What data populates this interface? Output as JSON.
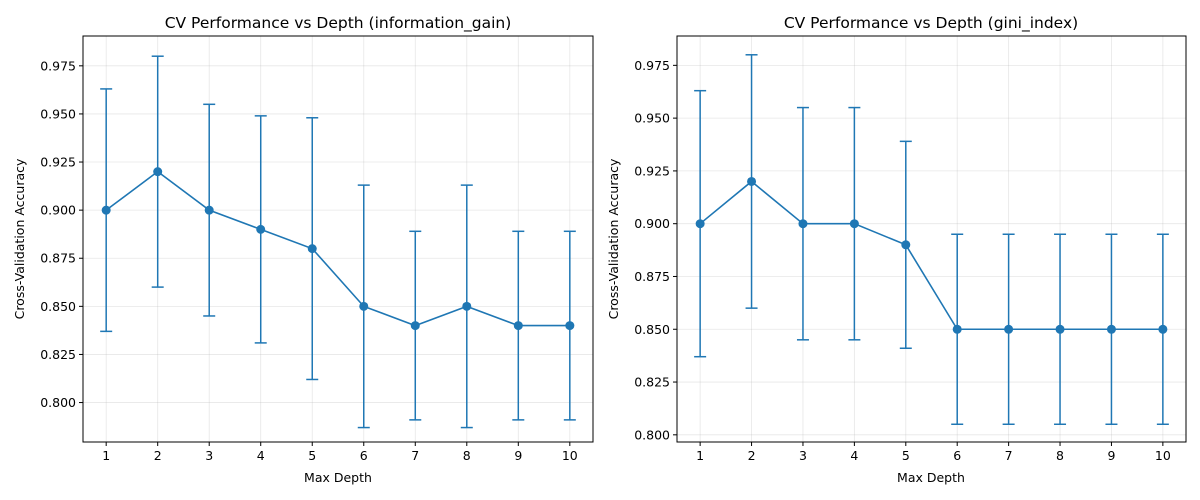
{
  "chart_data": [
    {
      "type": "line",
      "title": "CV Performance vs Depth (information_gain)",
      "xlabel": "Max Depth",
      "ylabel": "Cross-Validation Accuracy",
      "x": [
        1,
        2,
        3,
        4,
        5,
        6,
        7,
        8,
        9,
        10
      ],
      "xlim": [
        0.55,
        10.45
      ],
      "ylim": [
        0.7795,
        0.9905
      ],
      "yticks": [
        "0.800",
        "0.825",
        "0.850",
        "0.875",
        "0.900",
        "0.925",
        "0.950",
        "0.975"
      ],
      "grid": true,
      "color": "#1f77b4",
      "series": [
        {
          "values": [
            0.9,
            0.92,
            0.9,
            0.89,
            0.88,
            0.85,
            0.84,
            0.85,
            0.84,
            0.84
          ],
          "error_low": [
            0.837,
            0.86,
            0.845,
            0.831,
            0.812,
            0.787,
            0.791,
            0.787,
            0.791,
            0.791
          ],
          "error_high": [
            0.963,
            0.98,
            0.955,
            0.949,
            0.948,
            0.913,
            0.889,
            0.913,
            0.889,
            0.889
          ]
        }
      ]
    },
    {
      "type": "line",
      "title": "CV Performance vs Depth (gini_index)",
      "xlabel": "Max Depth",
      "ylabel": "Cross-Validation Accuracy",
      "x": [
        1,
        2,
        3,
        4,
        5,
        6,
        7,
        8,
        9,
        10
      ],
      "xlim": [
        0.55,
        10.45
      ],
      "ylim": [
        0.7966,
        0.9889
      ],
      "yticks": [
        "0.800",
        "0.825",
        "0.850",
        "0.875",
        "0.900",
        "0.925",
        "0.950",
        "0.975"
      ],
      "grid": true,
      "color": "#1f77b4",
      "series": [
        {
          "values": [
            0.9,
            0.92,
            0.9,
            0.9,
            0.89,
            0.85,
            0.85,
            0.85,
            0.85,
            0.85
          ],
          "error_low": [
            0.837,
            0.86,
            0.845,
            0.845,
            0.841,
            0.805,
            0.805,
            0.805,
            0.805,
            0.805
          ],
          "error_high": [
            0.963,
            0.98,
            0.955,
            0.955,
            0.939,
            0.895,
            0.895,
            0.895,
            0.895,
            0.895
          ]
        }
      ]
    }
  ]
}
